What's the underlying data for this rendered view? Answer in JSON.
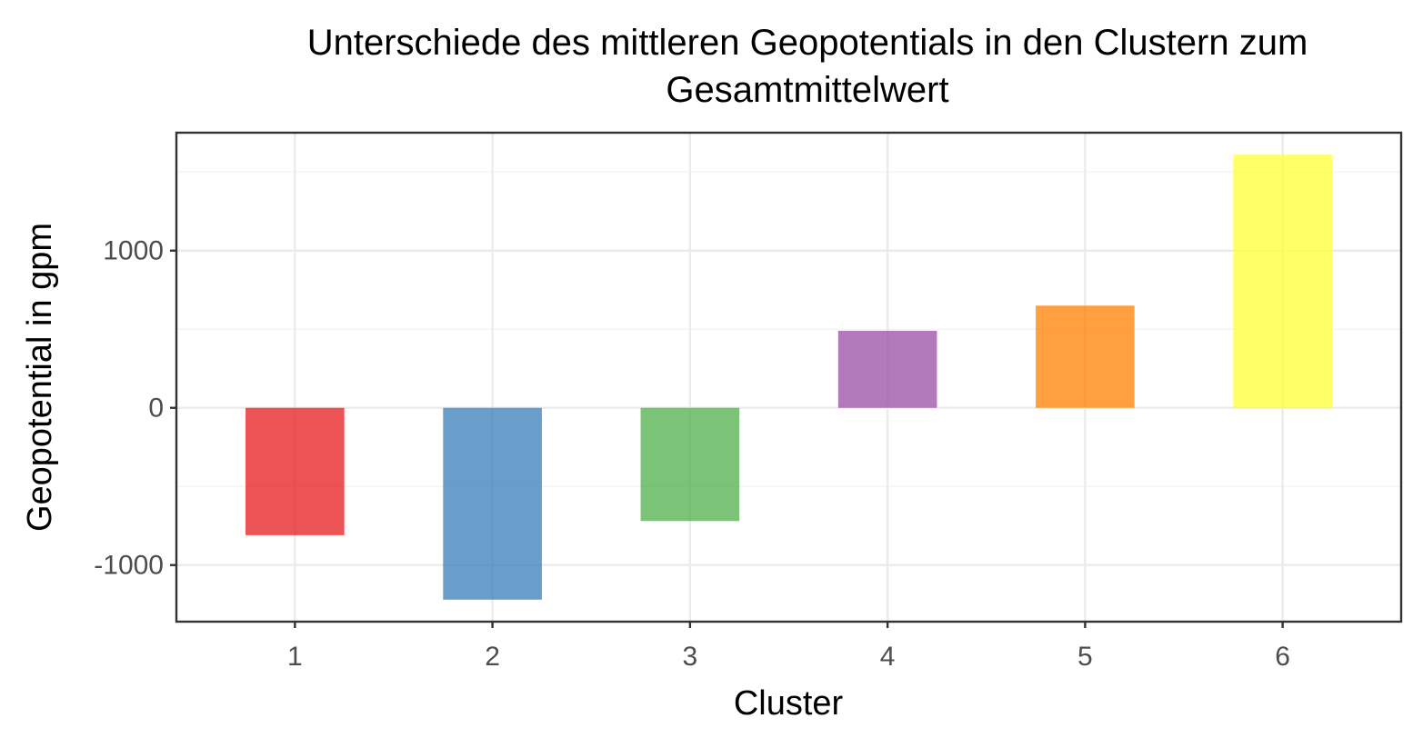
{
  "chart_data": {
    "type": "bar",
    "title": "Unterschiede des mittleren Geopotentials in den Clustern zum Gesamtmittelwert",
    "title_lines": [
      "Unterschiede des mittleren Geopotentials in den Clustern zum",
      "Gesamtmittelwert"
    ],
    "xlabel": "Cluster",
    "ylabel": "Geopotential in gpm",
    "categories": [
      "1",
      "2",
      "3",
      "4",
      "5",
      "6"
    ],
    "values": [
      -810,
      -1220,
      -720,
      490,
      650,
      1610
    ],
    "colors": [
      "#E41A1C",
      "#377EB8",
      "#4DAF4A",
      "#984EA3",
      "#FF7F00",
      "#FFFF33"
    ],
    "bar_opacity": 0.75,
    "ylim": [
      -1360,
      1750
    ],
    "yticks": [
      -1000,
      0,
      1000
    ],
    "ytick_labels": [
      "-1000",
      "0",
      "1000"
    ],
    "grid": true,
    "legend": "none"
  }
}
